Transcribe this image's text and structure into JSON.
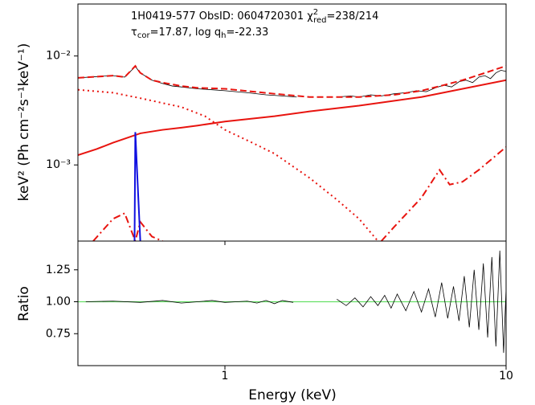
{
  "chart_data": [
    {
      "type": "line",
      "xscale": "log",
      "yscale": "log",
      "ylabel": "keV² (Ph cm⁻²s⁻¹keV⁻¹)",
      "annotation_1": {
        "a": "1H0419-577  ObsID: 0604720301  χ",
        "sup": "2",
        "sub": "red",
        "b": "=238/214"
      },
      "annotation_2": {
        "a": "τ",
        "sub1": "cor",
        "b": "=17.87, log q",
        "sub2": "h",
        "c": "=-22.33"
      },
      "xlim": [
        0.3,
        10
      ],
      "ylim": [
        0.0002,
        0.03
      ],
      "yticks": [
        {
          "value": 0.01,
          "label": "10⁻²"
        },
        {
          "value": 0.001,
          "label": "10⁻³"
        }
      ],
      "series": [
        {
          "color": "#000000",
          "linestyle": "solid",
          "width": 0.8,
          "x": [
            0.3,
            0.33,
            0.36,
            0.4,
            0.44,
            0.48,
            0.5,
            0.55,
            0.6,
            0.65,
            0.7,
            0.8,
            0.9,
            1.0,
            1.2,
            1.4,
            1.6,
            1.8,
            2.1,
            2.5,
            2.8,
            3.0,
            3.3,
            3.6,
            4.0,
            4.4,
            4.8,
            5.2,
            5.6,
            6.0,
            6.4,
            6.8,
            7.2,
            7.6,
            8.0,
            8.4,
            8.8,
            9.2,
            9.6,
            10
          ],
          "values": [
            0.0063,
            0.0064,
            0.0065,
            0.0066,
            0.0064,
            0.008,
            0.007,
            0.006,
            0.0056,
            0.0053,
            0.0052,
            0.005,
            0.0049,
            0.0048,
            0.0046,
            0.0044,
            0.0043,
            0.0042,
            null,
            0.0042,
            0.0043,
            0.0042,
            0.0044,
            0.0043,
            0.0045,
            0.0046,
            0.0048,
            0.0047,
            0.0051,
            0.0054,
            0.0052,
            0.0058,
            0.006,
            0.0057,
            0.0064,
            0.0066,
            0.0062,
            0.007,
            0.0074,
            0.0072
          ]
        },
        {
          "color": "#e8140f",
          "linestyle": "dashed",
          "width": 2,
          "x": [
            0.3,
            0.4,
            0.44,
            0.48,
            0.5,
            0.55,
            0.6,
            0.7,
            0.8,
            1.0,
            1.5,
            2,
            3,
            4,
            5,
            6,
            7,
            8,
            10
          ],
          "values": [
            0.0063,
            0.0066,
            0.0064,
            0.0081,
            0.007,
            0.006,
            0.0057,
            0.0053,
            0.0051,
            0.005,
            0.0045,
            0.0042,
            0.0042,
            0.0044,
            0.0048,
            0.0054,
            0.006,
            0.0067,
            0.0081
          ]
        },
        {
          "color": "#e8140f",
          "linestyle": "solid",
          "width": 2,
          "x": [
            0.3,
            0.35,
            0.4,
            0.5,
            0.6,
            0.7,
            0.8,
            1.0,
            1.5,
            2,
            3,
            5,
            10
          ],
          "values": [
            0.00123,
            0.0014,
            0.0016,
            0.00195,
            0.0021,
            0.0022,
            0.0023,
            0.0025,
            0.0028,
            0.0031,
            0.0035,
            0.0042,
            0.006
          ]
        },
        {
          "color": "#e8140f",
          "linestyle": "dotted",
          "width": 2,
          "x": [
            0.3,
            0.4,
            0.5,
            0.6,
            0.7,
            0.85,
            1.0,
            1.25,
            1.5,
            2,
            2.5,
            3,
            3.5
          ],
          "values": [
            0.0049,
            0.0046,
            0.0041,
            0.0037,
            0.0034,
            0.0028,
            0.0021,
            0.0016,
            0.00127,
            0.00076,
            0.00048,
            0.00032,
            0.0002
          ]
        },
        {
          "color": "#e8140f",
          "linestyle": "dashdot",
          "width": 2,
          "x": [
            0.34,
            0.4,
            0.44,
            0.48,
            0.5,
            0.55,
            0.6,
            2,
            3.6,
            4,
            5,
            5.8,
            6.3,
            7,
            8,
            10
          ],
          "values": [
            0.0002,
            0.00032,
            0.00036,
            0.0002,
            0.0003,
            0.00022,
            0.0002,
            null,
            0.0002,
            0.00027,
            0.0005,
            0.0009,
            0.00066,
            0.0007,
            0.0009,
            0.00146
          ]
        },
        {
          "color": "#1010e0",
          "linestyle": "solid",
          "width": 2,
          "x": [
            0.477,
            0.48,
            0.5
          ],
          "values": [
            0.0002,
            0.002,
            0.0002
          ]
        }
      ]
    },
    {
      "type": "line",
      "xscale": "log",
      "xlabel": "Energy (keV)",
      "ylabel": "Ratio",
      "xlim": [
        0.3,
        10
      ],
      "ylim": [
        0.5,
        1.475
      ],
      "xticks": [
        1,
        10
      ],
      "yticks": [
        0.75,
        {
          "value": 1,
          "label": "1.00"
        },
        1.25
      ],
      "ref_line": {
        "value": 1,
        "color": "#66e066"
      },
      "series": [
        {
          "color": "#000000",
          "linestyle": "solid",
          "width": 0.8,
          "x": [
            0.32,
            0.4,
            0.5,
            0.6,
            0.7,
            0.8,
            0.9,
            1.0,
            1.1,
            1.2,
            1.3,
            1.4,
            1.5,
            1.6,
            1.75,
            2.1,
            2.5,
            2.7,
            2.9,
            3.1,
            3.3,
            3.5,
            3.7,
            3.9,
            4.1,
            4.4,
            4.7,
            5.0,
            5.3,
            5.6,
            5.9,
            6.2,
            6.5,
            6.8,
            7.1,
            7.4,
            7.7,
            8.0,
            8.3,
            8.6,
            8.9,
            9.2,
            9.5,
            9.8,
            10
          ],
          "values": [
            1.0,
            1.005,
            0.995,
            1.01,
            0.99,
            1.0,
            1.01,
            0.995,
            1.0,
            1.005,
            0.99,
            1.01,
            0.985,
            1.01,
            0.995,
            null,
            1.02,
            0.97,
            1.03,
            0.96,
            1.04,
            0.97,
            1.05,
            0.95,
            1.06,
            0.93,
            1.08,
            0.92,
            1.1,
            0.88,
            1.15,
            0.87,
            1.12,
            0.85,
            1.2,
            0.8,
            1.25,
            0.78,
            1.3,
            0.72,
            1.35,
            0.65,
            1.4,
            0.6,
            1.1
          ]
        }
      ]
    }
  ]
}
